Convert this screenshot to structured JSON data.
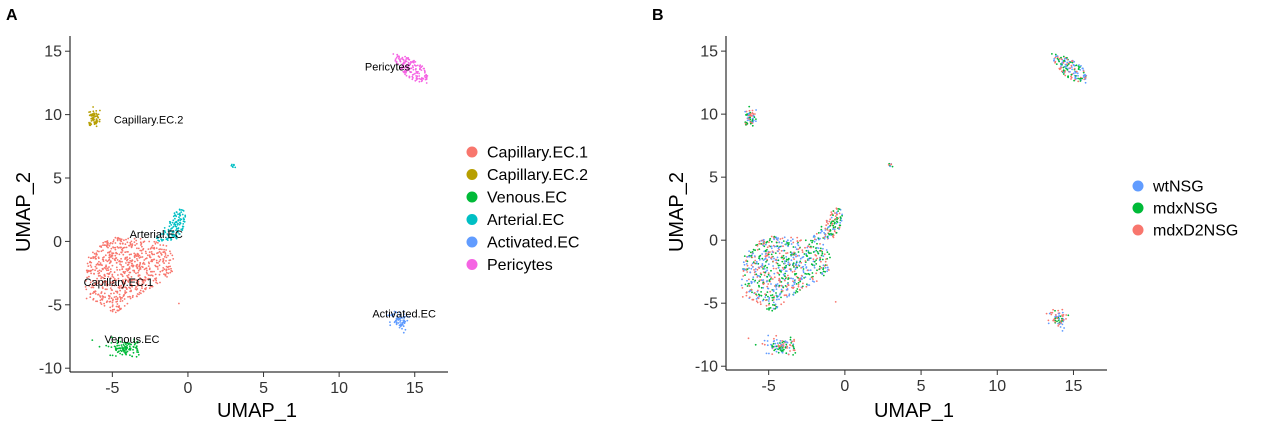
{
  "chart_data": [
    {
      "type": "scatter",
      "panel_label": "A",
      "xlabel": "UMAP_1",
      "ylabel": "UMAP_2",
      "xlim": [
        -7.8,
        17.2
      ],
      "ylim": [
        -10.3,
        16.2
      ],
      "xticks": [
        -5,
        0,
        5,
        10,
        15
      ],
      "yticks": [
        -10,
        -5,
        0,
        5,
        10,
        15
      ],
      "legend_position": "right",
      "series": [
        {
          "name": "Capillary.EC.1",
          "color": "#F8766D"
        },
        {
          "name": "Capillary.EC.2",
          "color": "#B79F00"
        },
        {
          "name": "Venous.EC",
          "color": "#00BA38"
        },
        {
          "name": "Arterial.EC",
          "color": "#00BFC4"
        },
        {
          "name": "Activated.EC",
          "color": "#619CFF"
        },
        {
          "name": "Pericytes",
          "color": "#F564E3"
        }
      ],
      "annotations": [
        {
          "text": "Pericytes",
          "x": 13.2,
          "y": 13.8
        },
        {
          "text": "Capillary.EC.2",
          "x": -2.6,
          "y": 9.6
        },
        {
          "text": "Arterial.EC",
          "x": -2.1,
          "y": 0.6
        },
        {
          "text": "Capillary.EC.1",
          "x": -4.6,
          "y": -3.2
        },
        {
          "text": "Venous.EC",
          "x": -3.7,
          "y": -7.7
        },
        {
          "text": "Activated.EC",
          "x": 14.3,
          "y": -5.7
        }
      ]
    },
    {
      "type": "scatter",
      "panel_label": "B",
      "xlabel": "UMAP_1",
      "ylabel": "UMAP_2",
      "xlim": [
        -7.8,
        17.2
      ],
      "ylim": [
        -10.3,
        16.2
      ],
      "xticks": [
        -5,
        0,
        5,
        10,
        15
      ],
      "yticks": [
        -10,
        -5,
        0,
        5,
        10,
        15
      ],
      "legend_position": "right",
      "series": [
        {
          "name": "wtNSG",
          "color": "#619CFF"
        },
        {
          "name": "mdxNSG",
          "color": "#00BA38"
        },
        {
          "name": "mdxD2NSG",
          "color": "#F8766D"
        }
      ]
    }
  ]
}
